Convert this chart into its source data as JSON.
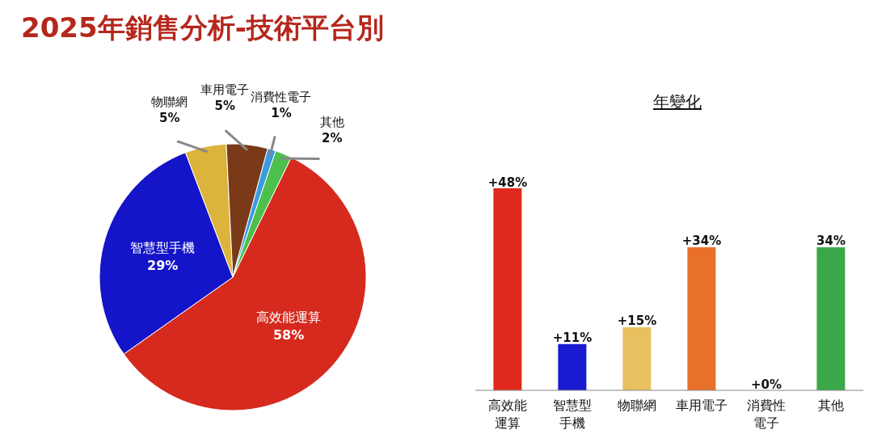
{
  "chart_data": [
    {
      "type": "pie",
      "title": "2025年銷售分析-技術平台別",
      "categories": [
        "高效能運算",
        "智慧型手機",
        "物聯網",
        "車用電子",
        "消費性電子",
        "其他"
      ],
      "values": [
        58,
        29,
        5,
        5,
        1,
        2
      ],
      "value_labels": [
        "58%",
        "29%",
        "5%",
        "5%",
        "1%",
        "2%"
      ],
      "colors": [
        "#d62a1e",
        "#1414c8",
        "#dcb43c",
        "#7a3a18",
        "#3a9be0",
        "#4cbf4c"
      ],
      "legend": false
    },
    {
      "type": "bar",
      "title": "年變化",
      "categories": [
        "高效能運算",
        "智慧型手機",
        "物聯網",
        "車用電子",
        "消費性電子",
        "其他"
      ],
      "values": [
        48,
        11,
        15,
        34,
        0,
        34
      ],
      "value_labels": [
        "+48%",
        "+11%",
        "+15%",
        "+34%",
        "+0%",
        "34%"
      ],
      "colors": [
        "#e0281c",
        "#1a1ad0",
        "#e8c060",
        "#e8702a",
        "#999999",
        "#3aa84a"
      ],
      "legend": false,
      "grid": false
    }
  ]
}
